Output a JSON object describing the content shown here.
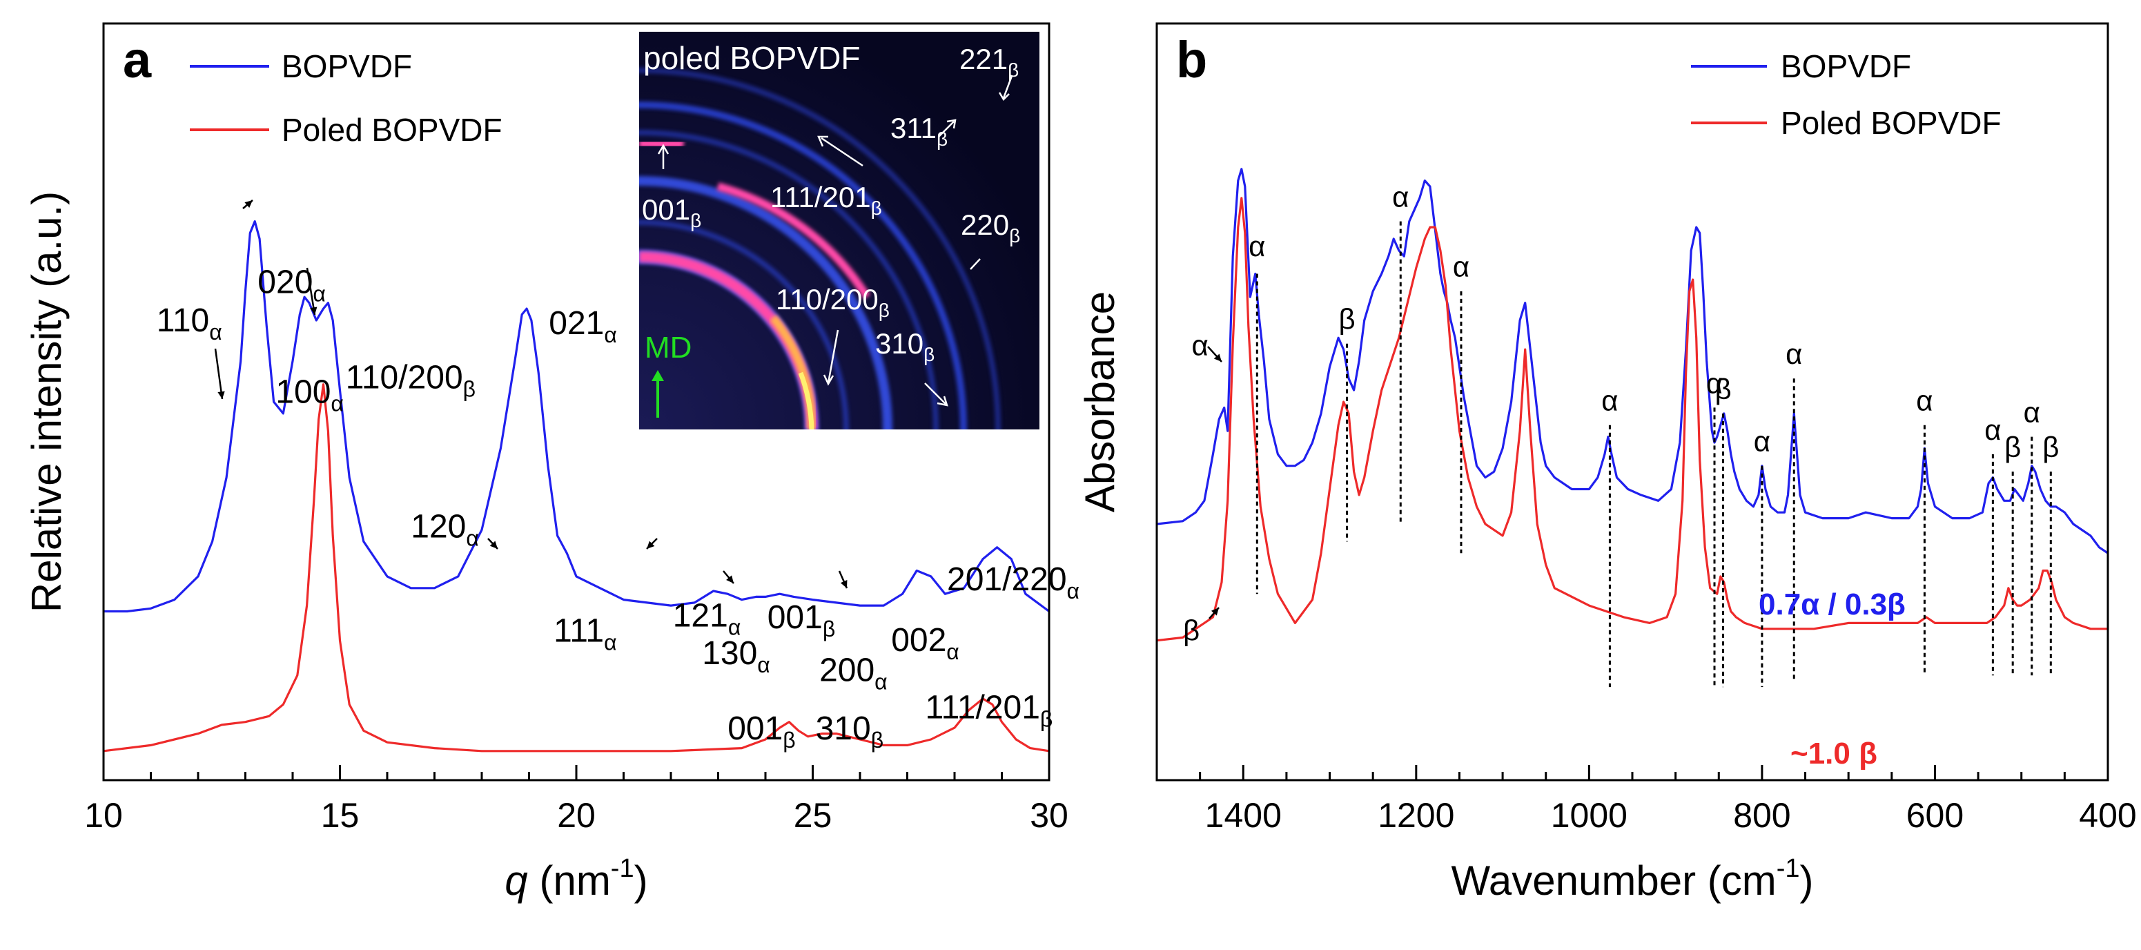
{
  "colors": {
    "blue": "#2020ee",
    "red": "#ee2a2a",
    "white": "#ffffff",
    "green": "#22dd22",
    "inset_bg": "#0a0a30",
    "ring_blue": "#3a58ff",
    "ring_pink": "#ff4aa8",
    "ring_orange": "#ffb050",
    "ring_yellow": "#fff070"
  },
  "chart_data": [
    {
      "panel": "a",
      "type": "line",
      "xlabel_var": "q",
      "xlabel_unit": " (nm",
      "xlabel_sup": "-1",
      "xlabel_close": ")",
      "ylabel": "Relative intensity (a.u.)",
      "xlim": [
        10,
        30
      ],
      "ylim": [
        0,
        1.3
      ],
      "xticks": [
        "10",
        "15",
        "20",
        "25",
        "30"
      ],
      "legend": [
        "BOPVDF",
        "Poled BOPVDF"
      ],
      "legend_position": "top-left",
      "series": [
        {
          "name": "BOPVDF",
          "color": "blue",
          "x": [
            10.0,
            10.5,
            11.0,
            11.5,
            12.0,
            12.3,
            12.6,
            12.9,
            13.0,
            13.1,
            13.2,
            13.3,
            13.45,
            13.6,
            13.8,
            14.0,
            14.15,
            14.25,
            14.35,
            14.5,
            14.65,
            14.75,
            14.85,
            15.0,
            15.2,
            15.5,
            16.0,
            16.5,
            17.0,
            17.5,
            18.0,
            18.4,
            18.7,
            18.85,
            18.95,
            19.05,
            19.2,
            19.4,
            19.6,
            19.8,
            20.0,
            20.5,
            21.0,
            22.0,
            22.5,
            22.9,
            23.2,
            23.5,
            23.8,
            24.0,
            24.3,
            24.6,
            25.0,
            25.5,
            26.0,
            26.5,
            26.9,
            27.2,
            27.5,
            27.8,
            28.2,
            28.6,
            28.9,
            29.2,
            29.5,
            30.0
          ],
          "y": [
            0.29,
            0.29,
            0.295,
            0.31,
            0.35,
            0.41,
            0.52,
            0.72,
            0.84,
            0.94,
            0.96,
            0.93,
            0.78,
            0.65,
            0.63,
            0.72,
            0.8,
            0.83,
            0.82,
            0.79,
            0.81,
            0.82,
            0.79,
            0.67,
            0.52,
            0.41,
            0.35,
            0.33,
            0.33,
            0.35,
            0.43,
            0.57,
            0.72,
            0.8,
            0.81,
            0.79,
            0.7,
            0.54,
            0.42,
            0.39,
            0.35,
            0.33,
            0.31,
            0.3,
            0.305,
            0.325,
            0.32,
            0.31,
            0.315,
            0.315,
            0.32,
            0.315,
            0.31,
            0.305,
            0.3,
            0.3,
            0.32,
            0.36,
            0.35,
            0.32,
            0.33,
            0.38,
            0.4,
            0.38,
            0.32,
            0.29
          ]
        },
        {
          "name": "Poled BOPVDF",
          "color": "red",
          "x": [
            10.0,
            11.0,
            12.0,
            12.5,
            13.0,
            13.5,
            13.8,
            14.1,
            14.3,
            14.45,
            14.55,
            14.65,
            14.75,
            14.85,
            15.0,
            15.2,
            15.5,
            16.0,
            17.0,
            18.0,
            20.0,
            22.0,
            23.5,
            24.0,
            24.3,
            24.5,
            24.7,
            24.9,
            25.2,
            25.5,
            26.0,
            26.5,
            27.0,
            27.5,
            28.0,
            28.3,
            28.6,
            28.8,
            29.0,
            29.3,
            29.6,
            30.0
          ],
          "y": [
            0.05,
            0.06,
            0.08,
            0.095,
            0.1,
            0.11,
            0.13,
            0.18,
            0.3,
            0.48,
            0.62,
            0.68,
            0.6,
            0.42,
            0.24,
            0.13,
            0.085,
            0.065,
            0.055,
            0.05,
            0.05,
            0.05,
            0.055,
            0.07,
            0.09,
            0.1,
            0.085,
            0.075,
            0.08,
            0.08,
            0.07,
            0.06,
            0.06,
            0.07,
            0.09,
            0.12,
            0.14,
            0.13,
            0.1,
            0.07,
            0.055,
            0.05
          ]
        }
      ],
      "annotations": [
        {
          "main": "020",
          "sub": "α",
          "xp": 16.3,
          "yp": 0.837
        },
        {
          "main": "110",
          "sub": "α",
          "xp": 5.6,
          "yp": 0.771
        },
        {
          "main": "100",
          "sub": "α",
          "xp": 18.2,
          "yp": 0.648
        },
        {
          "main": "110/200",
          "sub": "β",
          "xp": 25.6,
          "yp": 0.673
        },
        {
          "main": "021",
          "sub": "α",
          "xp": 47.1,
          "yp": 0.766
        },
        {
          "main": "120",
          "sub": "α",
          "xp": 32.5,
          "yp": 0.417
        },
        {
          "main": "111",
          "sub": "α",
          "xp": 47.6,
          "yp": 0.238
        },
        {
          "main": "121",
          "sub": "α",
          "xp": 60.2,
          "yp": 0.264
        },
        {
          "main": "130",
          "sub": "α",
          "xp": 63.3,
          "yp": 0.199
        },
        {
          "main": "001",
          "sub": "β",
          "xp": 70.2,
          "yp": 0.261
        },
        {
          "main": "200",
          "sub": "α",
          "xp": 75.7,
          "yp": 0.17
        },
        {
          "main": "002",
          "sub": "α",
          "xp": 83.3,
          "yp": 0.222
        },
        {
          "main": "201/220",
          "sub": "α",
          "xp": 89.2,
          "yp": 0.326
        },
        {
          "main": "001",
          "sub": "β",
          "xp": 66.0,
          "yp": 0.07
        },
        {
          "main": "310",
          "sub": "β",
          "xp": 75.3,
          "yp": 0.07
        },
        {
          "main": "111/201",
          "sub": "β",
          "xp": 86.9,
          "yp": 0.106
        }
      ],
      "inset": {
        "title": "poled BOPVDF",
        "labels": [
          {
            "main": "221",
            "sub": "β"
          },
          {
            "main": "311",
            "sub": "β"
          },
          {
            "main": "001",
            "sub": "β"
          },
          {
            "main": "111/201",
            "sub": "β"
          },
          {
            "main": "220",
            "sub": "β"
          },
          {
            "main": "110/200",
            "sub": "β"
          },
          {
            "main": "310",
            "sub": "β"
          }
        ],
        "direction_label": "MD"
      }
    },
    {
      "panel": "b",
      "type": "line",
      "xlabel": "Wavenumber (cm",
      "xlabel_sup": "-1",
      "xlabel_close": ")",
      "ylabel": "Absorbance",
      "xlim": [
        1500,
        400
      ],
      "ylim": [
        0,
        1.3
      ],
      "xticks": [
        "1400",
        "1200",
        "1000",
        "800",
        "600",
        "400"
      ],
      "legend": [
        "BOPVDF",
        "Poled BOPVDF"
      ],
      "legend_position": "top-right",
      "series": [
        {
          "name": "BOPVDF",
          "color": "blue",
          "x": [
            1500,
            1470,
            1455,
            1445,
            1435,
            1428,
            1422,
            1418,
            1412,
            1406,
            1402,
            1398,
            1392,
            1386,
            1382,
            1376,
            1370,
            1360,
            1350,
            1340,
            1330,
            1320,
            1310,
            1300,
            1290,
            1284,
            1278,
            1272,
            1266,
            1260,
            1250,
            1240,
            1232,
            1226,
            1220,
            1214,
            1208,
            1202,
            1196,
            1190,
            1184,
            1180,
            1176,
            1172,
            1168,
            1164,
            1160,
            1155,
            1150,
            1145,
            1140,
            1130,
            1120,
            1110,
            1100,
            1090,
            1080,
            1074,
            1068,
            1062,
            1056,
            1050,
            1040,
            1020,
            1000,
            990,
            982,
            978,
            974,
            968,
            955,
            940,
            920,
            905,
            895,
            888,
            882,
            876,
            872,
            868,
            864,
            858,
            855,
            852,
            848,
            844,
            840,
            836,
            832,
            826,
            818,
            810,
            804,
            800,
            796,
            790,
            782,
            774,
            770,
            766,
            763,
            760,
            756,
            750,
            730,
            700,
            680,
            650,
            630,
            620,
            616,
            612,
            608,
            600,
            580,
            560,
            545,
            538,
            533,
            528,
            520,
            513,
            508,
            503,
            498,
            492,
            488,
            484,
            478,
            472,
            466,
            460,
            450,
            440,
            430,
            420,
            410,
            400
          ],
          "y": [
            0.44,
            0.445,
            0.46,
            0.48,
            0.56,
            0.62,
            0.64,
            0.6,
            0.9,
            1.03,
            1.05,
            1.02,
            0.83,
            0.87,
            0.8,
            0.72,
            0.62,
            0.56,
            0.54,
            0.54,
            0.55,
            0.58,
            0.63,
            0.71,
            0.76,
            0.74,
            0.69,
            0.67,
            0.72,
            0.79,
            0.84,
            0.87,
            0.9,
            0.93,
            0.91,
            0.9,
            0.96,
            0.98,
            1.0,
            1.03,
            1.02,
            0.97,
            0.92,
            0.87,
            0.84,
            0.82,
            0.79,
            0.76,
            0.71,
            0.66,
            0.62,
            0.54,
            0.52,
            0.53,
            0.57,
            0.65,
            0.79,
            0.82,
            0.74,
            0.66,
            0.58,
            0.54,
            0.52,
            0.5,
            0.5,
            0.52,
            0.56,
            0.59,
            0.56,
            0.52,
            0.5,
            0.49,
            0.48,
            0.5,
            0.58,
            0.74,
            0.91,
            0.95,
            0.94,
            0.84,
            0.72,
            0.6,
            0.58,
            0.59,
            0.61,
            0.63,
            0.6,
            0.56,
            0.53,
            0.5,
            0.48,
            0.47,
            0.49,
            0.54,
            0.5,
            0.47,
            0.46,
            0.46,
            0.49,
            0.57,
            0.63,
            0.57,
            0.49,
            0.46,
            0.45,
            0.45,
            0.46,
            0.45,
            0.45,
            0.47,
            0.5,
            0.57,
            0.51,
            0.47,
            0.45,
            0.45,
            0.46,
            0.51,
            0.52,
            0.5,
            0.48,
            0.48,
            0.5,
            0.49,
            0.48,
            0.51,
            0.54,
            0.53,
            0.5,
            0.48,
            0.47,
            0.47,
            0.46,
            0.44,
            0.43,
            0.42,
            0.4,
            0.39
          ]
        },
        {
          "name": "Poled BOPVDF",
          "color": "red",
          "x": [
            1500,
            1470,
            1455,
            1445,
            1435,
            1425,
            1418,
            1412,
            1406,
            1402,
            1398,
            1394,
            1388,
            1380,
            1370,
            1360,
            1340,
            1320,
            1310,
            1300,
            1290,
            1284,
            1278,
            1272,
            1266,
            1260,
            1250,
            1240,
            1220,
            1210,
            1200,
            1190,
            1184,
            1178,
            1172,
            1166,
            1160,
            1150,
            1140,
            1130,
            1120,
            1100,
            1090,
            1080,
            1074,
            1068,
            1060,
            1050,
            1040,
            1000,
            960,
            930,
            910,
            900,
            892,
            888,
            884,
            880,
            876,
            872,
            866,
            860,
            852,
            848,
            844,
            840,
            836,
            830,
            820,
            800,
            780,
            760,
            740,
            700,
            650,
            620,
            610,
            600,
            580,
            560,
            540,
            530,
            520,
            515,
            510,
            505,
            500,
            490,
            480,
            475,
            470,
            465,
            460,
            450,
            440,
            420,
            400
          ],
          "y": [
            0.24,
            0.245,
            0.26,
            0.27,
            0.28,
            0.34,
            0.48,
            0.75,
            0.95,
            1.0,
            0.94,
            0.78,
            0.62,
            0.47,
            0.38,
            0.32,
            0.27,
            0.31,
            0.39,
            0.5,
            0.61,
            0.65,
            0.63,
            0.53,
            0.49,
            0.52,
            0.6,
            0.67,
            0.76,
            0.82,
            0.88,
            0.93,
            0.95,
            0.95,
            0.91,
            0.85,
            0.74,
            0.6,
            0.52,
            0.47,
            0.44,
            0.42,
            0.46,
            0.6,
            0.74,
            0.6,
            0.44,
            0.37,
            0.33,
            0.3,
            0.28,
            0.27,
            0.28,
            0.32,
            0.48,
            0.7,
            0.84,
            0.86,
            0.76,
            0.55,
            0.4,
            0.33,
            0.32,
            0.35,
            0.34,
            0.31,
            0.29,
            0.28,
            0.27,
            0.26,
            0.26,
            0.26,
            0.26,
            0.27,
            0.27,
            0.27,
            0.28,
            0.27,
            0.27,
            0.27,
            0.27,
            0.28,
            0.3,
            0.33,
            0.31,
            0.3,
            0.3,
            0.31,
            0.33,
            0.36,
            0.36,
            0.34,
            0.31,
            0.28,
            0.27,
            0.26,
            0.26
          ]
        }
      ],
      "markers": [
        {
          "x": 1384,
          "y1": 0.87,
          "y2": 0.32,
          "label": "α",
          "ly": 0.9
        },
        {
          "x": 1280,
          "y1": 0.75,
          "y2": 0.41,
          "label": "β",
          "ly": 0.775
        },
        {
          "x": 1218,
          "y1": 0.96,
          "y2": 0.44,
          "label": "α",
          "ly": 0.985
        },
        {
          "x": 1148,
          "y1": 0.84,
          "y2": 0.39,
          "label": "α",
          "ly": 0.865
        },
        {
          "x": 976,
          "y1": 0.61,
          "y2": 0.16,
          "label": "α",
          "ly": 0.635
        },
        {
          "x": 855,
          "y1": 0.64,
          "y2": 0.16,
          "label": "α",
          "ly": 0.665
        },
        {
          "x": 845,
          "y1": 0.63,
          "y2": 0.16,
          "label": "β",
          "ly": 0.655
        },
        {
          "x": 800,
          "y1": 0.54,
          "y2": 0.16,
          "label": "α",
          "ly": 0.565
        },
        {
          "x": 763,
          "y1": 0.69,
          "y2": 0.17,
          "label": "α",
          "ly": 0.715
        },
        {
          "x": 612,
          "y1": 0.61,
          "y2": 0.18,
          "label": "α",
          "ly": 0.635
        },
        {
          "x": 533,
          "y1": 0.56,
          "y2": 0.18,
          "label": "α",
          "ly": 0.585
        },
        {
          "x": 510,
          "y1": 0.53,
          "y2": 0.18,
          "label": "β",
          "ly": 0.555
        },
        {
          "x": 488,
          "y1": 0.59,
          "y2": 0.18,
          "label": "α",
          "ly": 0.615
        },
        {
          "x": 466,
          "y1": 0.53,
          "y2": 0.18,
          "label": "β",
          "ly": 0.555
        }
      ],
      "extra_labels": [
        {
          "text": "α",
          "x": 1450,
          "y": 0.73
        },
        {
          "text": "β",
          "x": 1460,
          "y": 0.24
        }
      ],
      "fraction_blue": "0.7α / 0.3β",
      "fraction_red": "~1.0 β"
    }
  ]
}
